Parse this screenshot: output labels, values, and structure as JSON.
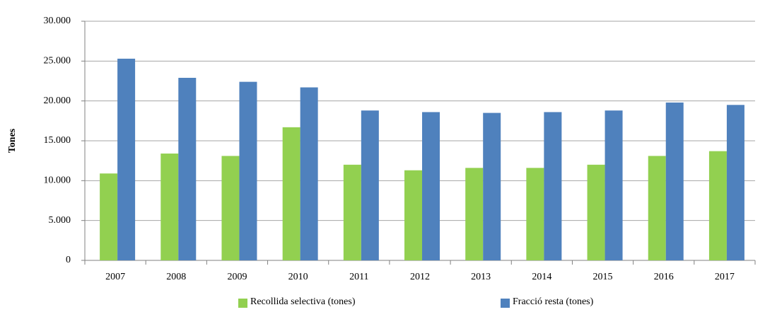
{
  "chart_data": {
    "type": "bar",
    "y_label": "Tones",
    "categories": [
      "2007",
      "2008",
      "2009",
      "2010",
      "2011",
      "2012",
      "2013",
      "2014",
      "2015",
      "2016",
      "2017"
    ],
    "series": [
      {
        "name": "Recollida selectiva (tones)",
        "color": "#92d050",
        "values": [
          10900,
          13400,
          13100,
          16700,
          12000,
          11300,
          11600,
          11600,
          12000,
          13100,
          13700
        ]
      },
      {
        "name": "Fracció resta (tones)",
        "color": "#4f81bd",
        "values": [
          25300,
          22900,
          22400,
          21700,
          18800,
          18600,
          18500,
          18600,
          18800,
          19800,
          19500
        ]
      }
    ],
    "ylim": [
      0,
      30000
    ],
    "yticks": [
      0,
      {
        "value": 5000,
        "label": "5.000"
      },
      {
        "value": 10000,
        "label": "10.000"
      },
      {
        "value": 15000,
        "label": "15.000"
      },
      {
        "value": 20000,
        "label": "20.000"
      },
      {
        "value": 25000,
        "label": "25.000"
      },
      {
        "value": 30000,
        "label": "30.000"
      }
    ],
    "grid": true,
    "legend": "bottom"
  }
}
